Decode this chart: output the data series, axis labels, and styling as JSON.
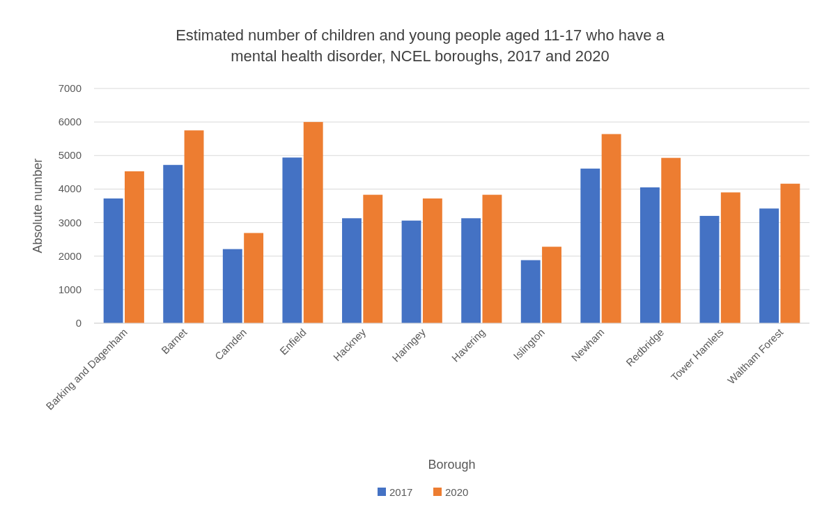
{
  "chart_data": {
    "type": "bar",
    "title": "Estimated number of children and young people aged 11-17 who have a mental health disorder, NCEL boroughs, 2017 and 2020",
    "xlabel": "Borough",
    "ylabel": "Absolute number",
    "categories": [
      "Barking and Dagenham",
      "Barnet",
      "Camden",
      "Enfield",
      "Hackney",
      "Haringey",
      "Havering",
      "Islington",
      "Newham",
      "Redbridge",
      "Tower Hamlets",
      "Waltham Forest"
    ],
    "series": [
      {
        "name": "2017",
        "color": "#4472c4",
        "values": [
          3720,
          4720,
          2210,
          4940,
          3130,
          3060,
          3130,
          1880,
          4610,
          4050,
          3200,
          3420
        ]
      },
      {
        "name": "2020",
        "color": "#ed7d31",
        "values": [
          4530,
          5750,
          2690,
          6000,
          3830,
          3720,
          3830,
          2280,
          5640,
          4930,
          3900,
          4160
        ]
      }
    ],
    "ylim": [
      0,
      7000
    ],
    "yticks": [
      0,
      1000,
      2000,
      3000,
      4000,
      5000,
      6000,
      7000
    ],
    "grid": "y",
    "legend": "bottom"
  }
}
